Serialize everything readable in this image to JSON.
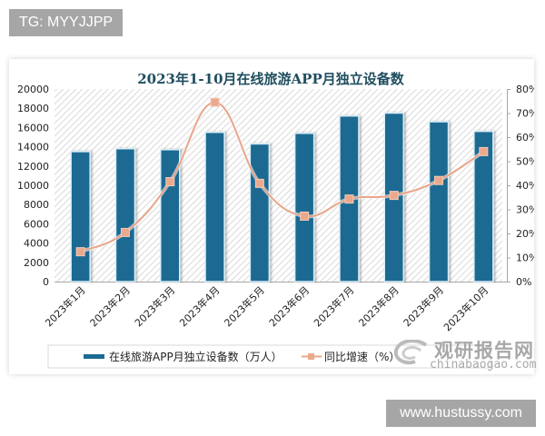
{
  "badges": {
    "top_left": "TG: MYYJJPP",
    "bottom_right": "www.hustussy.com"
  },
  "watermark": {
    "cn": "观研报告网",
    "en": "chinabaogao.com"
  },
  "colors": {
    "bar": "#1b6a92",
    "bar_outline": "#d8eef8",
    "line": "#e8a58a",
    "marker": "#eaa98c",
    "title": "#1f4e5f",
    "hatch": "#d9d9d9"
  },
  "chart_data": {
    "type": "bar+line",
    "title": "2023年1-10月在线旅游APP月独立设备数",
    "categories": [
      "2023年1月",
      "2023年2月",
      "2023年3月",
      "2023年4月",
      "2023年5月",
      "2023年6月",
      "2023年7月",
      "2023年8月",
      "2023年9月",
      "2023年10月"
    ],
    "series": [
      {
        "name": "在线旅游APP月独立设备数（万人）",
        "type": "bar",
        "axis": "left",
        "values": [
          13500,
          13800,
          13700,
          15500,
          14300,
          15400,
          17200,
          17500,
          16600,
          15600
        ]
      },
      {
        "name": "同比增速（%）",
        "type": "line",
        "axis": "right",
        "values": [
          12.4,
          20.4,
          41.5,
          74.5,
          40.8,
          27.2,
          34.3,
          35.8,
          42.0,
          54.0
        ]
      }
    ],
    "y_left": {
      "ylim": [
        0,
        20000
      ],
      "ticks": [
        "0",
        "2000",
        "4000",
        "6000",
        "8000",
        "10000",
        "12000",
        "14000",
        "16000",
        "18000",
        "20000"
      ]
    },
    "y_right": {
      "ylim": [
        0,
        80
      ],
      "ticks": [
        "0%",
        "10%",
        "20%",
        "30%",
        "40%",
        "50%",
        "60%",
        "70%",
        "80%"
      ]
    },
    "xlabel": "",
    "ylabel": "",
    "legend_position": "bottom",
    "grid": false,
    "background": "diagonal hatch"
  }
}
